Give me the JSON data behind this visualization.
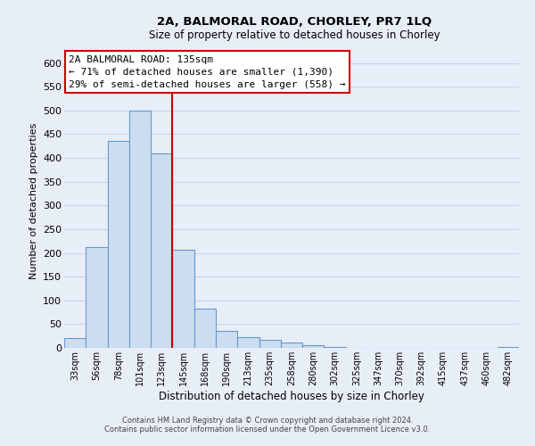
{
  "title": "2A, BALMORAL ROAD, CHORLEY, PR7 1LQ",
  "subtitle": "Size of property relative to detached houses in Chorley",
  "xlabel": "Distribution of detached houses by size in Chorley",
  "ylabel": "Number of detached properties",
  "bin_labels": [
    "33sqm",
    "56sqm",
    "78sqm",
    "101sqm",
    "123sqm",
    "145sqm",
    "168sqm",
    "190sqm",
    "213sqm",
    "235sqm",
    "258sqm",
    "280sqm",
    "302sqm",
    "325sqm",
    "347sqm",
    "370sqm",
    "392sqm",
    "415sqm",
    "437sqm",
    "460sqm",
    "482sqm"
  ],
  "bar_values": [
    20,
    212,
    435,
    500,
    410,
    207,
    83,
    35,
    22,
    17,
    12,
    5,
    1,
    0,
    0,
    0,
    0,
    0,
    0,
    0,
    2
  ],
  "bar_color": "#ccddf0",
  "bar_edge_color": "#6699cc",
  "vline_x": 4.5,
  "vline_color": "#cc0000",
  "annotation_text": "2A BALMORAL ROAD: 135sqm\n← 71% of detached houses are smaller (1,390)\n29% of semi-detached houses are larger (558) →",
  "annotation_box_color": "#ffffff",
  "annotation_box_edge_color": "#cc0000",
  "ylim": [
    0,
    620
  ],
  "yticks": [
    0,
    50,
    100,
    150,
    200,
    250,
    300,
    350,
    400,
    450,
    500,
    550,
    600
  ],
  "footer_line1": "Contains HM Land Registry data © Crown copyright and database right 2024.",
  "footer_line2": "Contains public sector information licensed under the Open Government Licence v3.0.",
  "bg_color": "#e8eef8",
  "plot_bg_color": "#e8eef8",
  "grid_color": "#c8d4e8"
}
